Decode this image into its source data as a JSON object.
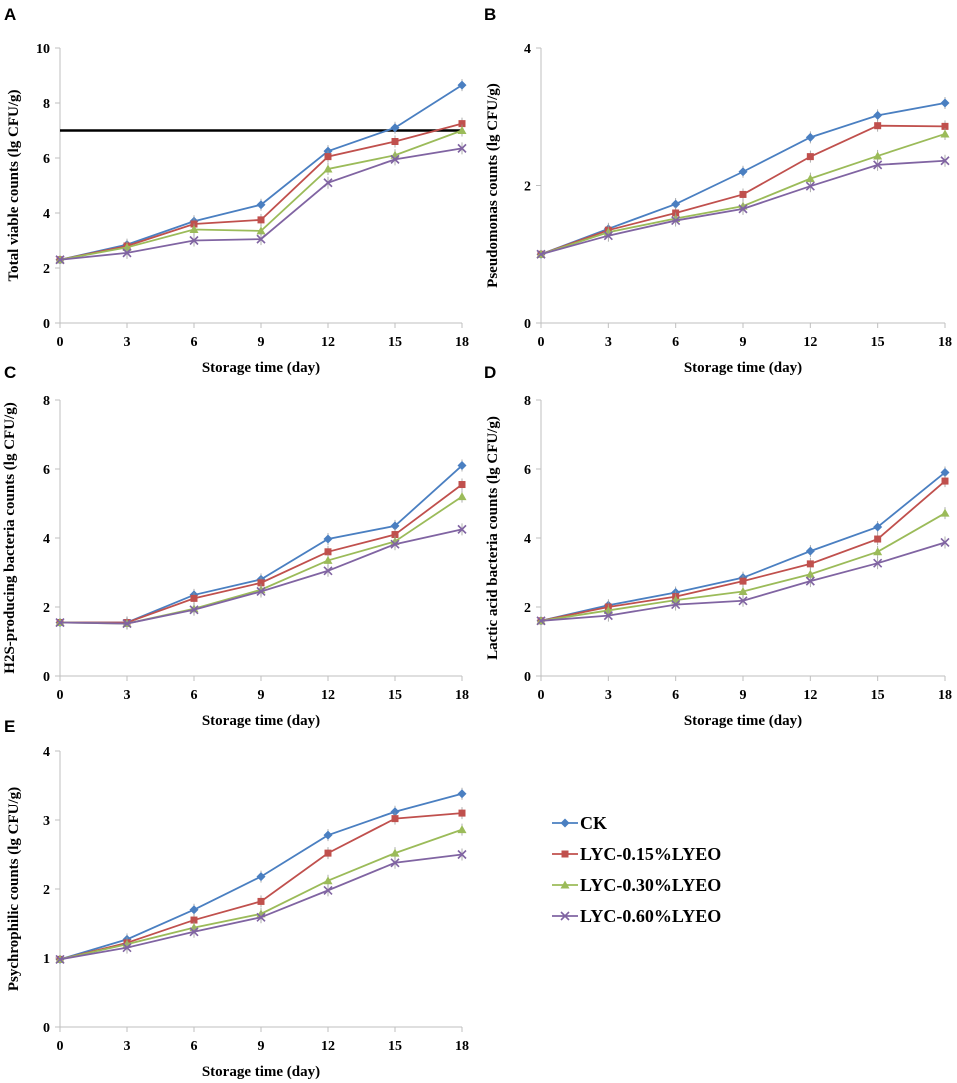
{
  "colors": {
    "CK": "#4a7fc1",
    "LYC-0.15%LYEO": "#c0504d",
    "LYC-0.30%LYEO": "#9bbb59",
    "LYC-0.60%LYEO": "#8064a2",
    "threshold": "#000000",
    "axis": "#bfbfbf"
  },
  "legend": [
    {
      "name": "CK",
      "marker": "diamond"
    },
    {
      "name": "LYC-0.15%LYEO",
      "marker": "square"
    },
    {
      "name": "LYC-0.30%LYEO",
      "marker": "triangle"
    },
    {
      "name": "LYC-0.60%LYEO",
      "marker": "cross"
    }
  ],
  "chart_data": [
    {
      "panel": "A",
      "type": "line",
      "xlabel": "Storage time (day)",
      "ylabel": "Total viable counts (lg CFU/g)",
      "x": [
        0,
        3,
        6,
        9,
        12,
        15,
        18
      ],
      "ylim": [
        0,
        10
      ],
      "yticks": [
        0,
        2,
        4,
        6,
        8,
        10
      ],
      "threshold": 7,
      "series": [
        {
          "name": "CK",
          "values": [
            2.3,
            2.85,
            3.7,
            4.3,
            6.25,
            7.1,
            8.65
          ]
        },
        {
          "name": "LYC-0.15%LYEO",
          "values": [
            2.3,
            2.8,
            3.6,
            3.75,
            6.05,
            6.6,
            7.25
          ]
        },
        {
          "name": "LYC-0.30%LYEO",
          "values": [
            2.3,
            2.75,
            3.4,
            3.35,
            5.6,
            6.1,
            7.0
          ]
        },
        {
          "name": "LYC-0.60%LYEO",
          "values": [
            2.3,
            2.55,
            3.0,
            3.05,
            5.1,
            5.95,
            6.35
          ]
        }
      ]
    },
    {
      "panel": "B",
      "type": "line",
      "xlabel": "Storage time (day)",
      "ylabel": "Pseudomonas counts (lg CFU/g)",
      "x": [
        0,
        3,
        6,
        9,
        12,
        15,
        18
      ],
      "ylim": [
        0,
        4
      ],
      "yticks": [
        0,
        2,
        4
      ],
      "series": [
        {
          "name": "CK",
          "values": [
            1.0,
            1.37,
            1.73,
            2.2,
            2.7,
            3.02,
            3.2
          ]
        },
        {
          "name": "LYC-0.15%LYEO",
          "values": [
            1.0,
            1.35,
            1.6,
            1.87,
            2.42,
            2.87,
            2.86
          ]
        },
        {
          "name": "LYC-0.30%LYEO",
          "values": [
            1.0,
            1.32,
            1.52,
            1.7,
            2.1,
            2.43,
            2.75
          ]
        },
        {
          "name": "LYC-0.60%LYEO",
          "values": [
            1.0,
            1.27,
            1.49,
            1.66,
            1.99,
            2.3,
            2.36
          ]
        }
      ]
    },
    {
      "panel": "C",
      "type": "line",
      "xlabel": "Storage time (day)",
      "ylabel": "H2S-producing  bacteria counts (lg CFU/g)",
      "x": [
        0,
        3,
        6,
        9,
        12,
        15,
        18
      ],
      "ylim": [
        0,
        8
      ],
      "yticks": [
        0,
        2,
        4,
        6,
        8
      ],
      "series": [
        {
          "name": "CK",
          "values": [
            1.55,
            1.55,
            2.35,
            2.8,
            3.97,
            4.35,
            6.1
          ]
        },
        {
          "name": "LYC-0.15%LYEO",
          "values": [
            1.55,
            1.55,
            2.25,
            2.7,
            3.6,
            4.1,
            5.55
          ]
        },
        {
          "name": "LYC-0.30%LYEO",
          "values": [
            1.55,
            1.52,
            1.95,
            2.5,
            3.35,
            3.9,
            5.2
          ]
        },
        {
          "name": "LYC-0.60%LYEO",
          "values": [
            1.55,
            1.52,
            1.92,
            2.45,
            3.05,
            3.82,
            4.25
          ]
        }
      ]
    },
    {
      "panel": "D",
      "type": "line",
      "xlabel": "Storage time (day)",
      "ylabel": "Lactic acid bacteria counts (lg CFU/g)",
      "x": [
        0,
        3,
        6,
        9,
        12,
        15,
        18
      ],
      "ylim": [
        0,
        8
      ],
      "yticks": [
        0,
        2,
        4,
        6,
        8
      ],
      "series": [
        {
          "name": "CK",
          "values": [
            1.6,
            2.05,
            2.42,
            2.85,
            3.62,
            4.32,
            5.9
          ]
        },
        {
          "name": "LYC-0.15%LYEO",
          "values": [
            1.6,
            2.0,
            2.3,
            2.75,
            3.25,
            3.97,
            5.65
          ]
        },
        {
          "name": "LYC-0.30%LYEO",
          "values": [
            1.6,
            1.9,
            2.2,
            2.45,
            2.95,
            3.6,
            4.72
          ]
        },
        {
          "name": "LYC-0.60%LYEO",
          "values": [
            1.6,
            1.75,
            2.07,
            2.18,
            2.75,
            3.27,
            3.87
          ]
        }
      ]
    },
    {
      "panel": "E",
      "type": "line",
      "xlabel": "Storage time (day)",
      "ylabel": "Psychrophilic counts (lg CFU/g)",
      "x": [
        0,
        3,
        6,
        9,
        12,
        15,
        18
      ],
      "ylim": [
        0,
        4
      ],
      "yticks": [
        0,
        1,
        2,
        3,
        4
      ],
      "series": [
        {
          "name": "CK",
          "values": [
            0.98,
            1.27,
            1.7,
            2.18,
            2.78,
            3.12,
            3.38
          ]
        },
        {
          "name": "LYC-0.15%LYEO",
          "values": [
            0.98,
            1.22,
            1.55,
            1.82,
            2.52,
            3.02,
            3.1
          ]
        },
        {
          "name": "LYC-0.30%LYEO",
          "values": [
            0.98,
            1.2,
            1.44,
            1.64,
            2.12,
            2.52,
            2.86
          ]
        },
        {
          "name": "LYC-0.60%LYEO",
          "values": [
            0.98,
            1.15,
            1.38,
            1.59,
            1.98,
            2.38,
            2.5
          ]
        }
      ]
    }
  ]
}
